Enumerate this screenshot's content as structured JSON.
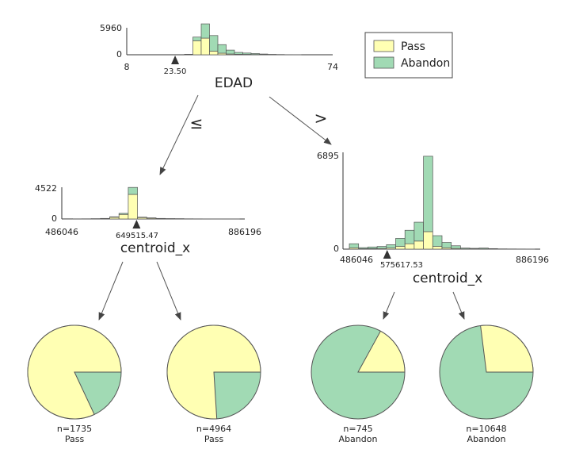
{
  "colors": {
    "pass": "#ffffb3",
    "abandon": "#a1dab4",
    "edge": "#444444",
    "bar_stroke": "#555555"
  },
  "legend": {
    "items": [
      {
        "label": "Pass",
        "color": "#ffffb3"
      },
      {
        "label": "Abandon",
        "color": "#a1dab4"
      }
    ]
  },
  "edges": {
    "le_label": "≤",
    "gt_label": ">"
  },
  "nodes": {
    "root": {
      "feature": "EDAD",
      "y_max_label": "5960",
      "y_zero_label": "0",
      "x_min_label": "8",
      "x_max_label": "74",
      "split_label": "23.50",
      "ymax": 5960,
      "x_range": [
        8,
        74
      ],
      "split": 23.5,
      "bins": [
        {
          "pass": 0,
          "abandon": 0
        },
        {
          "pass": 0,
          "abandon": 0
        },
        {
          "pass": 0,
          "abandon": 0
        },
        {
          "pass": 0,
          "abandon": 0
        },
        {
          "pass": 0,
          "abandon": 0
        },
        {
          "pass": 0,
          "abandon": 0
        },
        {
          "pass": 60,
          "abandon": 40
        },
        {
          "pass": 2700,
          "abandon": 700
        },
        {
          "pass": 3200,
          "abandon": 2750
        },
        {
          "pass": 700,
          "abandon": 3000
        },
        {
          "pass": 300,
          "abandon": 1650
        },
        {
          "pass": 150,
          "abandon": 750
        },
        {
          "pass": 100,
          "abandon": 350
        },
        {
          "pass": 80,
          "abandon": 250
        },
        {
          "pass": 50,
          "abandon": 180
        },
        {
          "pass": 30,
          "abandon": 110
        },
        {
          "pass": 20,
          "abandon": 60
        },
        {
          "pass": 10,
          "abandon": 40
        },
        {
          "pass": 5,
          "abandon": 20
        },
        {
          "pass": 3,
          "abandon": 12
        },
        {
          "pass": 0,
          "abandon": 0
        },
        {
          "pass": 0,
          "abandon": 0
        },
        {
          "pass": 0,
          "abandon": 0
        },
        {
          "pass": 0,
          "abandon": 0
        },
        {
          "pass": 0,
          "abandon": 0
        }
      ]
    },
    "left": {
      "feature": "centroid_x",
      "y_max_label": "4522",
      "y_zero_label": "0",
      "x_min_label": "486046",
      "x_max_label": "886196",
      "split_label": "649515.47",
      "ymax": 4522,
      "x_range": [
        486046,
        886196
      ],
      "split": 649515.47,
      "bins": [
        {
          "pass": 20,
          "abandon": 10
        },
        {
          "pass": 15,
          "abandon": 5
        },
        {
          "pass": 20,
          "abandon": 5
        },
        {
          "pass": 30,
          "abandon": 10
        },
        {
          "pass": 60,
          "abandon": 20
        },
        {
          "pass": 250,
          "abandon": 60
        },
        {
          "pass": 650,
          "abandon": 150
        },
        {
          "pass": 3500,
          "abandon": 1000
        },
        {
          "pass": 200,
          "abandon": 60
        },
        {
          "pass": 120,
          "abandon": 40
        },
        {
          "pass": 60,
          "abandon": 20
        },
        {
          "pass": 40,
          "abandon": 10
        },
        {
          "pass": 30,
          "abandon": 10
        },
        {
          "pass": 20,
          "abandon": 5
        },
        {
          "pass": 15,
          "abandon": 5
        },
        {
          "pass": 10,
          "abandon": 5
        },
        {
          "pass": 10,
          "abandon": 3
        },
        {
          "pass": 8,
          "abandon": 2
        },
        {
          "pass": 5,
          "abandon": 2
        }
      ]
    },
    "right": {
      "feature": "centroid_x",
      "y_max_label": "6895",
      "y_zero_label": "0",
      "x_min_label": "486046",
      "x_max_label": "886196",
      "split_label": "575617.53",
      "ymax": 6895,
      "x_range": [
        486046,
        886196
      ],
      "split": 575617.53,
      "bins": [
        {
          "pass": 100,
          "abandon": 300
        },
        {
          "pass": 30,
          "abandon": 80
        },
        {
          "pass": 40,
          "abandon": 120
        },
        {
          "pass": 50,
          "abandon": 150
        },
        {
          "pass": 80,
          "abandon": 250
        },
        {
          "pass": 200,
          "abandon": 600
        },
        {
          "pass": 400,
          "abandon": 1000
        },
        {
          "pass": 600,
          "abandon": 1400
        },
        {
          "pass": 1300,
          "abandon": 5600
        },
        {
          "pass": 200,
          "abandon": 800
        },
        {
          "pass": 100,
          "abandon": 400
        },
        {
          "pass": 50,
          "abandon": 200
        },
        {
          "pass": 20,
          "abandon": 60
        },
        {
          "pass": 15,
          "abandon": 45
        },
        {
          "pass": 20,
          "abandon": 60
        },
        {
          "pass": 10,
          "abandon": 30
        },
        {
          "pass": 5,
          "abandon": 15
        },
        {
          "pass": 5,
          "abandon": 10
        },
        {
          "pass": 3,
          "abandon": 8
        },
        {
          "pass": 2,
          "abandon": 5
        }
      ]
    }
  },
  "leaves": [
    {
      "n_label": "n=1735",
      "class_label": "Pass",
      "pass_fraction": 0.82
    },
    {
      "n_label": "n=4964",
      "class_label": "Pass",
      "pass_fraction": 0.76
    },
    {
      "n_label": "n=745",
      "class_label": "Abandon",
      "pass_fraction": 0.17
    },
    {
      "n_label": "n=10648",
      "class_label": "Abandon",
      "pass_fraction": 0.27
    }
  ]
}
